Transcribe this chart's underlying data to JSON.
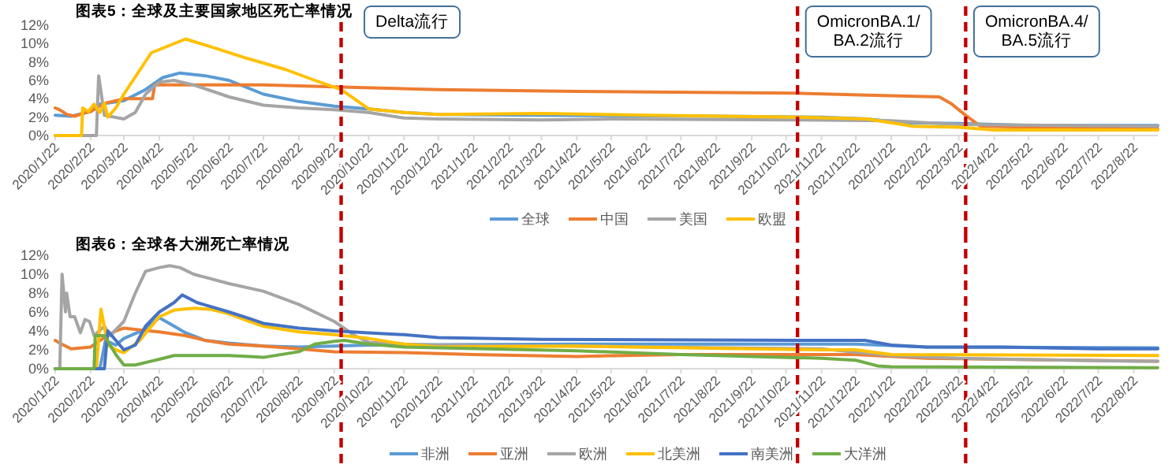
{
  "chart_data": [
    {
      "type": "line",
      "title": "图表5：全球及主要国家地区死亡率情况",
      "xlim": [
        "2020-01-22",
        "2022-09-12"
      ],
      "ylim": [
        0,
        12
      ],
      "yticks": [
        {
          "value": 0,
          "label": "0%"
        },
        {
          "value": 2,
          "label": "2%"
        },
        {
          "value": 4,
          "label": "4%"
        },
        {
          "value": 6,
          "label": "6%"
        },
        {
          "value": 8,
          "label": "8%"
        },
        {
          "value": 10,
          "label": "10%"
        },
        {
          "value": 12,
          "label": "12%"
        }
      ],
      "xticks": [
        {
          "value": "2020-01-22",
          "label": "2020/1/22"
        },
        {
          "value": "2020-02-22",
          "label": "2020/2/22"
        },
        {
          "value": "2020-03-22",
          "label": "2020/3/22"
        },
        {
          "value": "2020-04-22",
          "label": "2020/4/22"
        },
        {
          "value": "2020-05-22",
          "label": "2020/5/22"
        },
        {
          "value": "2020-06-22",
          "label": "2020/6/22"
        },
        {
          "value": "2020-07-22",
          "label": "2020/7/22"
        },
        {
          "value": "2020-08-22",
          "label": "2020/8/22"
        },
        {
          "value": "2020-09-22",
          "label": "2020/9/22"
        },
        {
          "value": "2020-10-22",
          "label": "2020/10/22"
        },
        {
          "value": "2020-11-22",
          "label": "2020/11/22"
        },
        {
          "value": "2020-12-22",
          "label": "2020/12/22"
        },
        {
          "value": "2021-01-22",
          "label": "2021/1/22"
        },
        {
          "value": "2021-02-22",
          "label": "2021/2/22"
        },
        {
          "value": "2021-03-22",
          "label": "2021/3/22"
        },
        {
          "value": "2021-04-22",
          "label": "2021/4/22"
        },
        {
          "value": "2021-05-22",
          "label": "2021/5/22"
        },
        {
          "value": "2021-06-22",
          "label": "2021/6/22"
        },
        {
          "value": "2021-07-22",
          "label": "2021/7/22"
        },
        {
          "value": "2021-08-22",
          "label": "2021/8/22"
        },
        {
          "value": "2021-09-22",
          "label": "2021/9/22"
        },
        {
          "value": "2021-10-22",
          "label": "2021/10/22"
        },
        {
          "value": "2021-11-22",
          "label": "2021/11/22"
        },
        {
          "value": "2021-12-22",
          "label": "2021/12/22"
        },
        {
          "value": "2022-01-22",
          "label": "2022/1/22"
        },
        {
          "value": "2022-02-22",
          "label": "2022/2/22"
        },
        {
          "value": "2022-03-22",
          "label": "2022/3/22"
        },
        {
          "value": "2022-04-22",
          "label": "2022/4/22"
        },
        {
          "value": "2022-05-22",
          "label": "2022/5/22"
        },
        {
          "value": "2022-06-22",
          "label": "2022/6/22"
        },
        {
          "value": "2022-07-22",
          "label": "2022/7/22"
        },
        {
          "value": "2022-08-22",
          "label": "2022/8/22"
        }
      ],
      "legend": "bottom",
      "ref_lines": [
        {
          "axis": "x",
          "value": "2020-09-28",
          "label": "Delta流行",
          "color": "#c00000",
          "line_style": "dashed"
        },
        {
          "axis": "x",
          "value": "2021-11-01",
          "label": "OmicronBA.1/BA.2流行",
          "color": "#c00000",
          "line_style": "dashed"
        },
        {
          "axis": "x",
          "value": "2022-03-28",
          "label": "OmicronBA.4/BA.5流行",
          "color": "#c00000",
          "line_style": "dashed"
        }
      ],
      "series": [
        {
          "name": "全球",
          "color": "#5b9bd5",
          "x": [
            "2020-01-22",
            "2020-02-05",
            "2020-02-22",
            "2020-03-01",
            "2020-03-22",
            "2020-04-10",
            "2020-04-25",
            "2020-05-10",
            "2020-06-01",
            "2020-06-22",
            "2020-07-22",
            "2020-08-22",
            "2020-09-22",
            "2020-10-22",
            "2020-11-22",
            "2020-12-22",
            "2021-03-22",
            "2021-08-22",
            "2021-11-22",
            "2022-01-01",
            "2022-02-01",
            "2022-03-22",
            "2022-05-22",
            "2022-09-12"
          ],
          "values": [
            2.2,
            2.1,
            2.6,
            3.4,
            3.8,
            5.0,
            6.3,
            6.8,
            6.5,
            6.0,
            4.5,
            3.7,
            3.2,
            2.9,
            2.5,
            2.3,
            2.2,
            2.1,
            2.0,
            1.8,
            1.4,
            1.3,
            1.1,
            1.1
          ]
        },
        {
          "name": "中国",
          "color": "#ed7d31",
          "x": [
            "2020-01-22",
            "2020-01-26",
            "2020-02-01",
            "2020-02-08",
            "2020-02-15",
            "2020-02-22",
            "2020-03-05",
            "2020-03-22",
            "2020-04-16",
            "2020-04-18",
            "2020-07-22",
            "2020-09-22",
            "2020-12-22",
            "2021-04-22",
            "2021-11-01",
            "2022-01-01",
            "2022-03-05",
            "2022-03-15",
            "2022-03-28",
            "2022-04-10",
            "2022-09-12"
          ],
          "values": [
            3.0,
            2.8,
            2.3,
            2.1,
            2.4,
            2.6,
            3.5,
            4.0,
            4.0,
            5.5,
            5.5,
            5.3,
            5.0,
            4.8,
            4.6,
            4.4,
            4.2,
            3.5,
            2.2,
            1.0,
            0.7
          ]
        },
        {
          "name": "美国",
          "color": "#a5a5a5",
          "x": [
            "2020-01-22",
            "2020-02-27",
            "2020-02-29",
            "2020-03-05",
            "2020-03-22",
            "2020-04-01",
            "2020-04-10",
            "2020-04-22",
            "2020-05-05",
            "2020-05-22",
            "2020-06-22",
            "2020-07-22",
            "2020-08-22",
            "2020-09-22",
            "2020-10-22",
            "2020-11-22",
            "2020-12-22",
            "2021-03-22",
            "2021-05-22",
            "2021-11-01",
            "2022-01-22",
            "2022-03-22",
            "2022-06-22",
            "2022-09-12"
          ],
          "values": [
            0,
            0,
            6.5,
            2.2,
            1.8,
            2.5,
            4.5,
            5.8,
            6.0,
            5.5,
            4.2,
            3.3,
            3.0,
            2.8,
            2.5,
            1.9,
            1.8,
            1.7,
            1.8,
            1.7,
            1.6,
            1.2,
            1.1,
            1.0
          ]
        },
        {
          "name": "欧盟",
          "color": "#ffc000",
          "x": [
            "2020-01-22",
            "2020-02-14",
            "2020-02-15",
            "2020-02-20",
            "2020-02-25",
            "2020-03-01",
            "2020-03-05",
            "2020-03-08",
            "2020-03-15",
            "2020-03-22",
            "2020-03-30",
            "2020-04-15",
            "2020-05-15",
            "2020-06-10",
            "2020-07-05",
            "2020-08-10",
            "2020-09-05",
            "2020-09-28",
            "2020-10-22",
            "2020-11-22",
            "2020-12-22",
            "2021-03-22",
            "2021-06-22",
            "2021-11-01",
            "2022-01-01",
            "2022-02-10",
            "2022-03-22",
            "2022-04-22",
            "2022-09-12"
          ],
          "values": [
            0,
            0,
            3.0,
            2.6,
            3.4,
            2.5,
            3.5,
            2.0,
            3.0,
            4.5,
            6.0,
            9.0,
            10.5,
            9.5,
            8.5,
            7.2,
            6.0,
            5.0,
            2.9,
            2.5,
            2.3,
            2.4,
            2.2,
            2.0,
            1.8,
            1.0,
            0.9,
            0.6,
            0.6
          ]
        }
      ]
    },
    {
      "type": "line",
      "title": "图表6：全球各大洲死亡率情况",
      "xlim": [
        "2020-01-22",
        "2022-09-12"
      ],
      "ylim": [
        0,
        12
      ],
      "yticks": [
        {
          "value": 0,
          "label": "0%"
        },
        {
          "value": 2,
          "label": "2%"
        },
        {
          "value": 4,
          "label": "4%"
        },
        {
          "value": 6,
          "label": "6%"
        },
        {
          "value": 8,
          "label": "8%"
        },
        {
          "value": 10,
          "label": "10%"
        },
        {
          "value": 12,
          "label": "12%"
        }
      ],
      "xticks": [
        {
          "value": "2020-01-22",
          "label": "2020/1/22"
        },
        {
          "value": "2020-02-22",
          "label": "2020/2/22"
        },
        {
          "value": "2020-03-22",
          "label": "2020/3/22"
        },
        {
          "value": "2020-04-22",
          "label": "2020/4/22"
        },
        {
          "value": "2020-05-22",
          "label": "2020/5/22"
        },
        {
          "value": "2020-06-22",
          "label": "2020/6/22"
        },
        {
          "value": "2020-07-22",
          "label": "2020/7/22"
        },
        {
          "value": "2020-08-22",
          "label": "2020/8/22"
        },
        {
          "value": "2020-09-22",
          "label": "2020/9/22"
        },
        {
          "value": "2020-10-22",
          "label": "2020/10/22"
        },
        {
          "value": "2020-11-22",
          "label": "2020/11/22"
        },
        {
          "value": "2020-12-22",
          "label": "2020/12/22"
        },
        {
          "value": "2021-01-22",
          "label": "2021/1/22"
        },
        {
          "value": "2021-02-22",
          "label": "2021/2/22"
        },
        {
          "value": "2021-03-22",
          "label": "2021/3/22"
        },
        {
          "value": "2021-04-22",
          "label": "2021/4/22"
        },
        {
          "value": "2021-05-22",
          "label": "2021/5/22"
        },
        {
          "value": "2021-06-22",
          "label": "2021/6/22"
        },
        {
          "value": "2021-07-22",
          "label": "2021/7/22"
        },
        {
          "value": "2021-08-22",
          "label": "2021/8/22"
        },
        {
          "value": "2021-09-22",
          "label": "2021/9/22"
        },
        {
          "value": "2021-10-22",
          "label": "2021/10/22"
        },
        {
          "value": "2021-11-22",
          "label": "2021/11/22"
        },
        {
          "value": "2021-12-22",
          "label": "2021/12/22"
        },
        {
          "value": "2022-01-22",
          "label": "2022/1/22"
        },
        {
          "value": "2022-02-22",
          "label": "2022/2/22"
        },
        {
          "value": "2022-03-22",
          "label": "2022/3/22"
        },
        {
          "value": "2022-04-22",
          "label": "2022/4/22"
        },
        {
          "value": "2022-05-22",
          "label": "2022/5/22"
        },
        {
          "value": "2022-06-22",
          "label": "2022/6/22"
        },
        {
          "value": "2022-07-22",
          "label": "2022/7/22"
        },
        {
          "value": "2022-08-22",
          "label": "2022/8/22"
        }
      ],
      "legend": "bottom",
      "ref_lines": [
        {
          "axis": "x",
          "value": "2020-09-28",
          "color": "#c00000",
          "line_style": "dashed"
        },
        {
          "axis": "x",
          "value": "2021-11-01",
          "color": "#c00000",
          "line_style": "dashed"
        },
        {
          "axis": "x",
          "value": "2022-03-28",
          "color": "#c00000",
          "line_style": "dashed"
        }
      ],
      "series": [
        {
          "name": "非洲",
          "color": "#5b9bd5",
          "x": [
            "2020-01-22",
            "2020-03-01",
            "2020-03-06",
            "2020-03-15",
            "2020-03-22",
            "2020-04-10",
            "2020-04-22",
            "2020-05-05",
            "2020-05-15",
            "2020-06-01",
            "2020-06-22",
            "2020-07-22",
            "2020-08-22",
            "2020-09-22",
            "2020-10-22",
            "2021-04-22",
            "2021-12-22",
            "2022-02-22",
            "2022-09-12"
          ],
          "values": [
            0,
            0,
            3.0,
            2.5,
            3.2,
            4.2,
            5.4,
            4.5,
            3.8,
            3.0,
            2.7,
            2.4,
            2.3,
            2.4,
            2.5,
            2.6,
            2.6,
            2.3,
            2.2
          ]
        },
        {
          "name": "亚洲",
          "color": "#ed7d31",
          "x": [
            "2020-01-22",
            "2020-01-26",
            "2020-02-05",
            "2020-02-22",
            "2020-03-05",
            "2020-03-15",
            "2020-03-22",
            "2020-04-05",
            "2020-04-22",
            "2020-05-15",
            "2020-06-01",
            "2020-06-22",
            "2020-07-22",
            "2020-08-22",
            "2020-09-22",
            "2020-11-22",
            "2021-01-22",
            "2021-04-22",
            "2021-07-22",
            "2021-12-22",
            "2022-02-22",
            "2022-09-12"
          ],
          "values": [
            3.0,
            2.7,
            2.1,
            2.3,
            3.3,
            4.0,
            4.3,
            4.1,
            3.9,
            3.5,
            3.0,
            2.6,
            2.4,
            2.1,
            1.8,
            1.7,
            1.5,
            1.3,
            1.5,
            1.5,
            1.1,
            0.8
          ]
        },
        {
          "name": "欧洲",
          "color": "#a5a5a5",
          "x": [
            "2020-01-22",
            "2020-01-26",
            "2020-01-28",
            "2020-01-31",
            "2020-02-01",
            "2020-02-04",
            "2020-02-08",
            "2020-02-13",
            "2020-02-17",
            "2020-02-21",
            "2020-02-25",
            "2020-03-05",
            "2020-03-10",
            "2020-03-22",
            "2020-04-01",
            "2020-04-10",
            "2020-04-22",
            "2020-05-01",
            "2020-05-10",
            "2020-05-22",
            "2020-06-22",
            "2020-07-22",
            "2020-08-22",
            "2020-09-22",
            "2020-10-10",
            "2020-10-22",
            "2020-11-22",
            "2020-12-22",
            "2021-04-22",
            "2021-06-22",
            "2021-11-22",
            "2022-01-22",
            "2022-03-22",
            "2022-08-22",
            "2022-09-12"
          ],
          "values": [
            0,
            0,
            10.0,
            6.0,
            8.0,
            5.5,
            5.5,
            3.8,
            5.2,
            5.0,
            3.5,
            4.5,
            3.5,
            5.0,
            8.0,
            10.3,
            10.7,
            10.9,
            10.7,
            10.0,
            9.0,
            8.2,
            6.8,
            5.0,
            3.5,
            2.8,
            2.6,
            2.5,
            2.4,
            2.3,
            2.1,
            1.4,
            1.1,
            0.8,
            0.8
          ]
        },
        {
          "name": "北美洲",
          "color": "#ffc000",
          "x": [
            "2020-01-22",
            "2020-02-27",
            "2020-03-02",
            "2020-03-08",
            "2020-03-15",
            "2020-03-22",
            "2020-04-05",
            "2020-04-22",
            "2020-05-05",
            "2020-05-22",
            "2020-06-05",
            "2020-06-22",
            "2020-07-10",
            "2020-07-22",
            "2020-08-22",
            "2020-09-22",
            "2020-10-22",
            "2020-11-22",
            "2020-12-22",
            "2021-04-22",
            "2021-11-22",
            "2021-12-22",
            "2022-01-22",
            "2022-09-12"
          ],
          "values": [
            0,
            0,
            6.3,
            2.5,
            2.0,
            1.7,
            3.0,
            5.5,
            6.2,
            6.4,
            6.3,
            5.8,
            5.0,
            4.5,
            3.9,
            3.6,
            3.2,
            2.6,
            2.3,
            2.4,
            2.0,
            2.0,
            1.5,
            1.4
          ]
        },
        {
          "name": "南美洲",
          "color": "#4472c4",
          "x": [
            "2020-01-22",
            "2020-03-05",
            "2020-03-08",
            "2020-03-22",
            "2020-04-01",
            "2020-04-10",
            "2020-04-22",
            "2020-05-05",
            "2020-05-12",
            "2020-05-25",
            "2020-06-22",
            "2020-07-10",
            "2020-07-22",
            "2020-08-22",
            "2020-09-22",
            "2020-10-22",
            "2020-11-22",
            "2020-12-22",
            "2021-03-22",
            "2021-11-22",
            "2021-12-30",
            "2022-01-22",
            "2022-02-22",
            "2022-04-22",
            "2022-07-22",
            "2022-09-12"
          ],
          "values": [
            0,
            0,
            4.0,
            2.0,
            2.5,
            4.5,
            6.0,
            7.0,
            7.8,
            7.0,
            6.0,
            5.3,
            4.8,
            4.3,
            4.0,
            3.8,
            3.6,
            3.3,
            3.1,
            3.0,
            3.0,
            2.5,
            2.3,
            2.3,
            2.1,
            2.1
          ]
        },
        {
          "name": "大洋洲",
          "color": "#70ad47",
          "x": [
            "2020-01-22",
            "2020-02-25",
            "2020-02-26",
            "2020-03-05",
            "2020-03-15",
            "2020-03-22",
            "2020-04-01",
            "2020-04-15",
            "2020-04-22",
            "2020-05-05",
            "2020-06-22",
            "2020-07-10",
            "2020-07-22",
            "2020-08-22",
            "2020-09-05",
            "2020-09-22",
            "2020-10-01",
            "2020-10-22",
            "2020-11-22",
            "2021-04-22",
            "2021-07-22",
            "2021-11-22",
            "2021-12-22",
            "2022-01-10",
            "2022-01-22",
            "2022-09-12"
          ],
          "values": [
            0,
            0,
            3.5,
            3.5,
            1.5,
            0.4,
            0.4,
            0.8,
            1.0,
            1.4,
            1.4,
            1.3,
            1.2,
            1.8,
            2.6,
            2.9,
            3.0,
            2.6,
            2.3,
            1.9,
            1.5,
            1.1,
            0.9,
            0.3,
            0.2,
            0.1
          ]
        }
      ]
    }
  ]
}
